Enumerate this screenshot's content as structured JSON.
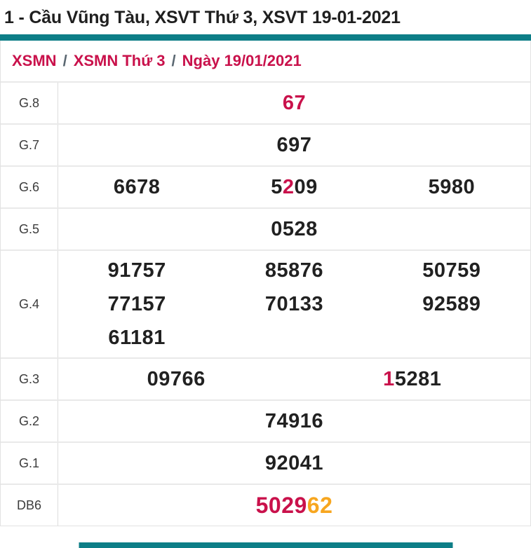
{
  "header": {
    "title": "1 - Cầu Vũng Tàu, XSVT Thứ 3, XSVT 19-01-2021"
  },
  "colors": {
    "teal": "#0d7e87",
    "red": "#c9114b",
    "orange": "#f7a61f",
    "black": "#212121"
  },
  "breadcrumb": {
    "separator": "/",
    "items": [
      "XSMN",
      "XSMN Thứ 3",
      "Ngày 19/01/2021"
    ]
  },
  "table": {
    "rows": [
      {
        "label": "G.8",
        "cols": 1,
        "lines": [
          [
            [
              {
                "t": "67",
                "c": "red"
              }
            ]
          ]
        ]
      },
      {
        "label": "G.7",
        "cols": 1,
        "lines": [
          [
            [
              {
                "t": "697",
                "c": "black"
              }
            ]
          ]
        ]
      },
      {
        "label": "G.6",
        "cols": 3,
        "lines": [
          [
            [
              {
                "t": "6678",
                "c": "black"
              }
            ],
            [
              {
                "t": "5",
                "c": "black"
              },
              {
                "t": "2",
                "c": "red"
              },
              {
                "t": "09",
                "c": "black"
              }
            ],
            [
              {
                "t": "5980",
                "c": "black"
              }
            ]
          ]
        ]
      },
      {
        "label": "G.5",
        "cols": 1,
        "lines": [
          [
            [
              {
                "t": "0528",
                "c": "black"
              }
            ]
          ]
        ]
      },
      {
        "label": "G.4",
        "cols": 3,
        "lines": [
          [
            [
              {
                "t": "91757",
                "c": "black"
              }
            ],
            [
              {
                "t": "85876",
                "c": "black"
              }
            ],
            [
              {
                "t": "50759",
                "c": "black"
              }
            ]
          ],
          [
            [
              {
                "t": "77157",
                "c": "black"
              }
            ],
            [
              {
                "t": "70133",
                "c": "black"
              }
            ],
            [
              {
                "t": "92589",
                "c": "black"
              }
            ]
          ],
          [
            [
              {
                "t": "61181",
                "c": "black"
              }
            ],
            [],
            []
          ]
        ]
      },
      {
        "label": "G.3",
        "cols": 2,
        "lines": [
          [
            [
              {
                "t": "09766",
                "c": "black"
              }
            ],
            [
              {
                "t": "1",
                "c": "red"
              },
              {
                "t": "5281",
                "c": "black"
              }
            ]
          ]
        ]
      },
      {
        "label": "G.2",
        "cols": 1,
        "lines": [
          [
            [
              {
                "t": "74916",
                "c": "black"
              }
            ]
          ]
        ]
      },
      {
        "label": "G.1",
        "cols": 1,
        "lines": [
          [
            [
              {
                "t": "92041",
                "c": "black"
              }
            ]
          ]
        ]
      },
      {
        "label": "DB6",
        "cols": 1,
        "big": true,
        "lines": [
          [
            [
              {
                "t": "5029",
                "c": "red"
              },
              {
                "t": "62",
                "c": "orange"
              }
            ]
          ]
        ]
      }
    ]
  }
}
